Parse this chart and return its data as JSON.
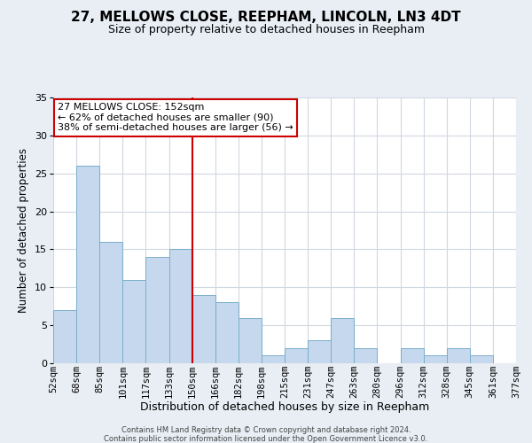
{
  "title": "27, MELLOWS CLOSE, REEPHAM, LINCOLN, LN3 4DT",
  "subtitle": "Size of property relative to detached houses in Reepham",
  "xlabel": "Distribution of detached houses by size in Reepham",
  "ylabel": "Number of detached properties",
  "bin_labels": [
    "52sqm",
    "68sqm",
    "85sqm",
    "101sqm",
    "117sqm",
    "133sqm",
    "150sqm",
    "166sqm",
    "182sqm",
    "198sqm",
    "215sqm",
    "231sqm",
    "247sqm",
    "263sqm",
    "280sqm",
    "296sqm",
    "312sqm",
    "328sqm",
    "345sqm",
    "361sqm",
    "377sqm"
  ],
  "bar_heights": [
    7,
    26,
    16,
    11,
    14,
    15,
    9,
    8,
    6,
    1,
    2,
    3,
    6,
    2,
    0,
    2,
    1,
    2,
    1,
    0
  ],
  "ylim": [
    0,
    35
  ],
  "yticks": [
    0,
    5,
    10,
    15,
    20,
    25,
    30,
    35
  ],
  "bar_color": "#c5d8ed",
  "bar_edge_color": "#7aaecb",
  "vline_x_index": 6,
  "vline_color": "#cc0000",
  "annotation_title": "27 MELLOWS CLOSE: 152sqm",
  "annotation_line1": "← 62% of detached houses are smaller (90)",
  "annotation_line2": "38% of semi-detached houses are larger (56) →",
  "annotation_box_facecolor": "#ffffff",
  "annotation_box_edgecolor": "#cc0000",
  "footer_line1": "Contains HM Land Registry data © Crown copyright and database right 2024.",
  "footer_line2": "Contains public sector information licensed under the Open Government Licence v3.0.",
  "bg_color": "#e8eef4",
  "plot_bg_color": "#ffffff",
  "grid_color": "#d0d8e0",
  "title_fontsize": 11,
  "subtitle_fontsize": 9,
  "ylabel_fontsize": 8.5,
  "xlabel_fontsize": 9,
  "tick_fontsize": 7.5,
  "annotation_fontsize": 8,
  "footer_fontsize": 6
}
